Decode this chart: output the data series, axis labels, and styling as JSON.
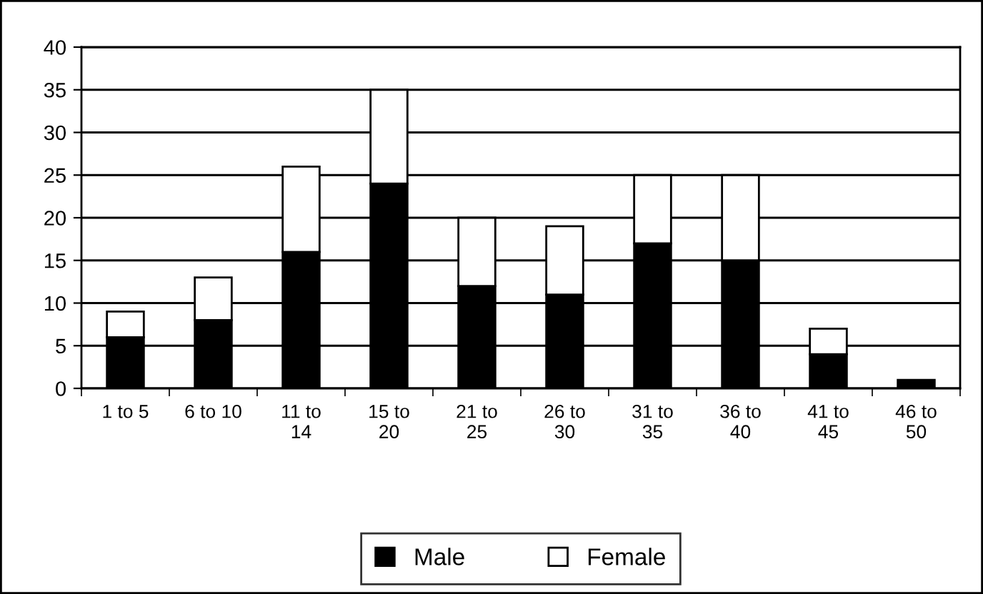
{
  "chart_data": {
    "type": "bar",
    "stacked": true,
    "categories": [
      "1 to 5",
      "6 to 10",
      "11 to\n14",
      "15 to\n20",
      "21 to\n25",
      "26 to\n30",
      "31 to\n35",
      "36 to\n40",
      "41 to\n45",
      "46 to\n50"
    ],
    "series": [
      {
        "name": "Male",
        "color": "#000000",
        "values": [
          6,
          8,
          16,
          24,
          12,
          11,
          17,
          15,
          4,
          1
        ]
      },
      {
        "name": "Female",
        "color": "#ffffff",
        "values": [
          3,
          5,
          10,
          11,
          8,
          8,
          8,
          10,
          3,
          null
        ]
      }
    ],
    "ylim": [
      0,
      40
    ],
    "yticks": [
      0,
      5,
      10,
      15,
      20,
      25,
      30,
      35,
      40
    ],
    "grid": "y",
    "legend": "bottom"
  }
}
